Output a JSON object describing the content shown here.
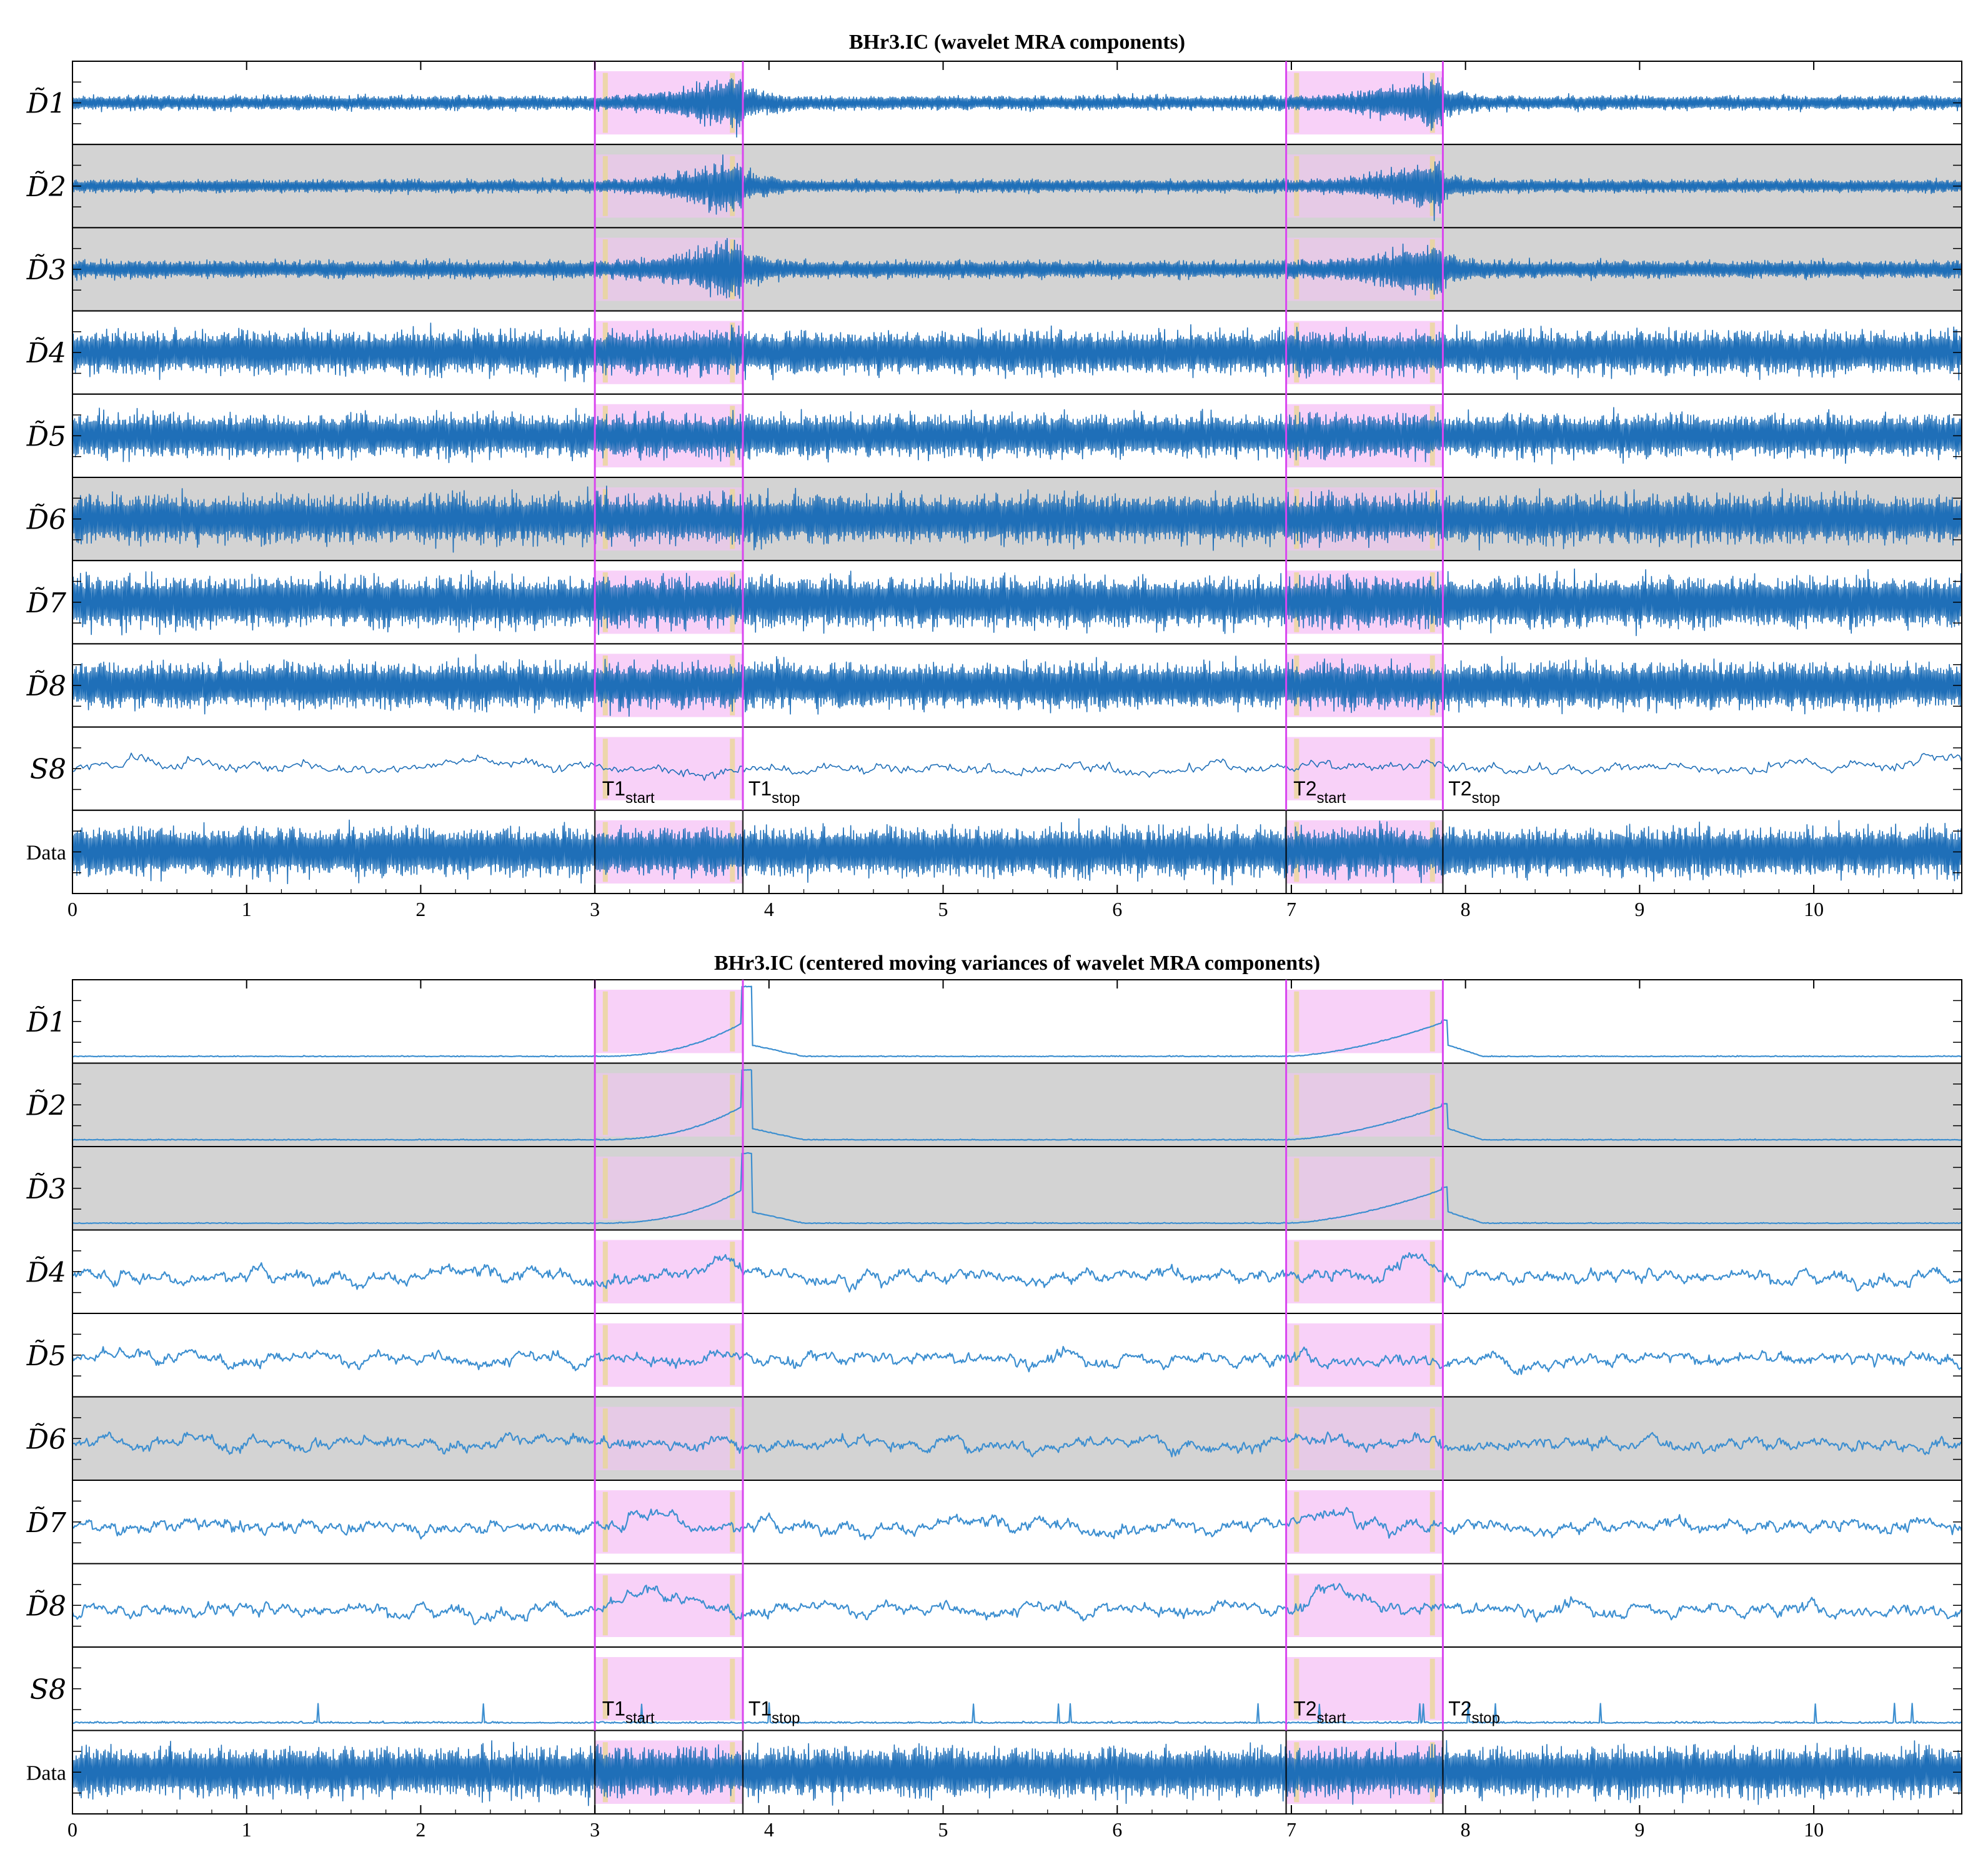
{
  "chart_data": [
    {
      "type": "line",
      "title": "BHr3.IC (wavelet MRA components)",
      "xlim": [
        0,
        10.85
      ],
      "xticks": [
        "0",
        "1",
        "2",
        "3",
        "4",
        "5",
        "6",
        "7",
        "8",
        "9",
        "10"
      ],
      "rows": [
        {
          "label": "D̃1",
          "shaded": false
        },
        {
          "label": "D̃2",
          "shaded": true
        },
        {
          "label": "D̃3",
          "shaded": true
        },
        {
          "label": "D̃4",
          "shaded": false
        },
        {
          "label": "D̃5",
          "shaded": false
        },
        {
          "label": "D̃6",
          "shaded": true
        },
        {
          "label": "D̃7",
          "shaded": false
        },
        {
          "label": "D̃8",
          "shaded": false
        },
        {
          "label": "S8",
          "shaded": false
        },
        {
          "label": "Data",
          "shaded": false
        }
      ],
      "event_lines": [
        3.0,
        3.85,
        6.97,
        7.87
      ],
      "highlight_regions": [
        [
          3.0,
          3.85
        ],
        [
          6.97,
          7.87
        ]
      ],
      "annotations": [
        {
          "base": "T1",
          "sub": "start",
          "x": 3.02
        },
        {
          "base": "T1",
          "sub": "stop",
          "x": 3.86
        },
        {
          "base": "T2",
          "sub": "start",
          "x": 6.99
        },
        {
          "base": "T2",
          "sub": "stop",
          "x": 7.88
        }
      ]
    },
    {
      "type": "line",
      "title": "BHr3.IC (centered moving variances of wavelet MRA components)",
      "xlim": [
        0,
        10.85
      ],
      "xticks": [
        "0",
        "1",
        "2",
        "3",
        "4",
        "5",
        "6",
        "7",
        "8",
        "9",
        "10"
      ],
      "rows": [
        {
          "label": "D̃1",
          "shaded": false
        },
        {
          "label": "D̃2",
          "shaded": true
        },
        {
          "label": "D̃3",
          "shaded": true
        },
        {
          "label": "D̃4",
          "shaded": false
        },
        {
          "label": "D̃5",
          "shaded": false
        },
        {
          "label": "D̃6",
          "shaded": true
        },
        {
          "label": "D̃7",
          "shaded": false
        },
        {
          "label": "D̃8",
          "shaded": false
        },
        {
          "label": "S8",
          "shaded": false
        },
        {
          "label": "Data",
          "shaded": false
        }
      ],
      "event_lines": [
        3.0,
        3.85,
        6.97,
        7.87
      ],
      "highlight_regions": [
        [
          3.0,
          3.85
        ],
        [
          6.97,
          7.87
        ]
      ],
      "annotations": [
        {
          "base": "T1",
          "sub": "start",
          "x": 3.02
        },
        {
          "base": "T1",
          "sub": "stop",
          "x": 3.86
        },
        {
          "base": "T2",
          "sub": "start",
          "x": 6.99
        },
        {
          "base": "T2",
          "sub": "stop",
          "x": 7.88
        }
      ]
    }
  ],
  "colors": {
    "signal": "#1f6fb8",
    "signal_light": "#3d8fd0",
    "event_line": "#d946ef",
    "highlight": "#f5c2f5",
    "shaded_panel": "#d3d3d3",
    "marker": "#e8d98a"
  }
}
